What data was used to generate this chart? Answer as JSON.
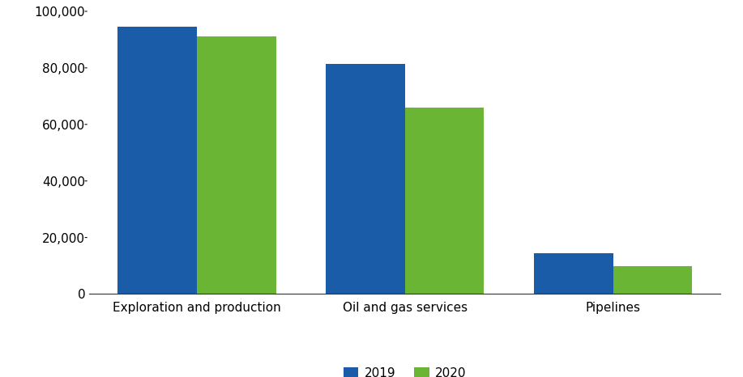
{
  "categories": [
    "Exploration and production",
    "Oil and gas services",
    "Pipelines"
  ],
  "values_2019": [
    94500,
    81500,
    14500
  ],
  "values_2020": [
    91000,
    66000,
    10000
  ],
  "color_2019": "#1a5ca8",
  "color_2020": "#6ab533",
  "legend_labels": [
    "2019",
    "2020"
  ],
  "ylim": [
    0,
    100000
  ],
  "yticks": [
    0,
    20000,
    40000,
    60000,
    80000,
    100000
  ],
  "bar_width": 0.38,
  "background_color": "#ffffff",
  "tick_label_fontsize": 11,
  "xlabel_fontsize": 11
}
